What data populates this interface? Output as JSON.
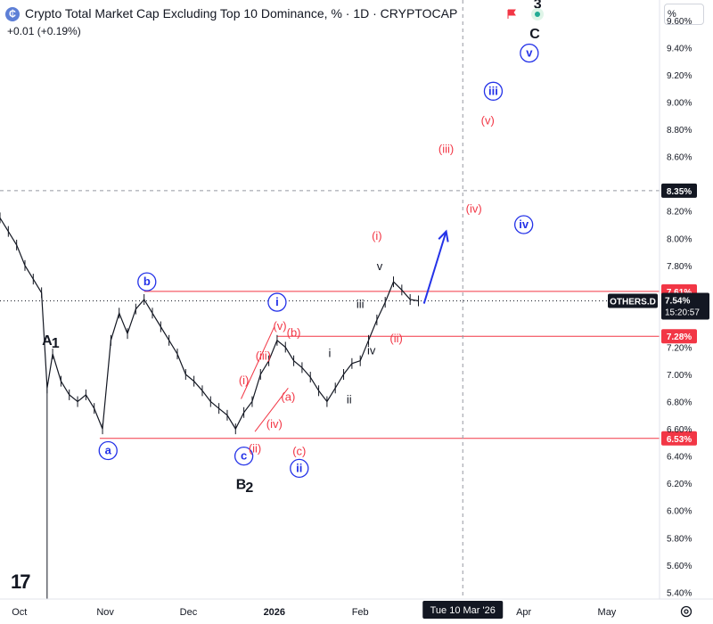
{
  "header": {
    "logo_glyph": "₵",
    "title": "Crypto Total Market Cap Excluding Top 10 Dominance, % · 1D · CRYPTOCAP",
    "change": "+0.01 (+0.19%)",
    "scale_button": "%",
    "flag_icon": "flag-icon",
    "status_icon": "market-status-icon"
  },
  "chart_data": {
    "type": "line",
    "symbol_label": "OTHERS.D",
    "last_price_label": "7.54%",
    "countdown": "15:20:57",
    "crosshair_price": "8.35%",
    "crosshair_date": "Tue 10 Mar '26",
    "y_ticks": [
      "9.60%",
      "9.40%",
      "9.20%",
      "9.00%",
      "8.80%",
      "8.60%",
      "8.20%",
      "8.00%",
      "7.80%",
      "7.20%",
      "7.00%",
      "6.80%",
      "6.60%",
      "6.40%",
      "6.20%",
      "6.00%",
      "5.80%",
      "5.60%",
      "5.40%"
    ],
    "y_tick_values": [
      9.6,
      9.4,
      9.2,
      9.0,
      8.8,
      8.6,
      8.2,
      8.0,
      7.8,
      7.2,
      7.0,
      6.8,
      6.6,
      6.4,
      6.2,
      6.0,
      5.8,
      5.6,
      5.4
    ],
    "ylim": [
      5.35,
      9.75
    ],
    "x_ticks": [
      "Oct",
      "Nov",
      "Dec",
      "2026",
      "Feb",
      "Apr",
      "May"
    ],
    "x_tick_dates": [
      "2025-10-01",
      "2025-11-01",
      "2025-12-01",
      "2026-01-01",
      "2026-02-01",
      "2026-04-01",
      "2026-05-01"
    ],
    "xlim": [
      "2025-09-24",
      "2026-05-20"
    ],
    "horizontal_levels": [
      {
        "value": 7.61,
        "label": "7.61%",
        "color": "#f23645",
        "from": "2025-11-15"
      },
      {
        "value": 7.28,
        "label": "7.28%",
        "color": "#f23645",
        "from": "2026-01-02"
      },
      {
        "value": 6.53,
        "label": "6.53%",
        "color": "#f23645",
        "from": "2025-10-30"
      }
    ],
    "series": [
      {
        "color": "#131722",
        "x": [
          "2025-09-24",
          "2025-09-27",
          "2025-09-30",
          "2025-10-03",
          "2025-10-06",
          "2025-10-09",
          "2025-10-11",
          "2025-10-13",
          "2025-10-16",
          "2025-10-19",
          "2025-10-22",
          "2025-10-25",
          "2025-10-28",
          "2025-10-31",
          "2025-11-03",
          "2025-11-06",
          "2025-11-09",
          "2025-11-12",
          "2025-11-15",
          "2025-11-18",
          "2025-11-21",
          "2025-11-24",
          "2025-11-27",
          "2025-11-30",
          "2025-12-03",
          "2025-12-06",
          "2025-12-09",
          "2025-12-12",
          "2025-12-15",
          "2025-12-18",
          "2025-12-21",
          "2025-12-24",
          "2025-12-27",
          "2025-12-30",
          "2026-01-02",
          "2026-01-05",
          "2026-01-08",
          "2026-01-11",
          "2026-01-14",
          "2026-01-17",
          "2026-01-20",
          "2026-01-23",
          "2026-01-26",
          "2026-01-29",
          "2026-02-01",
          "2026-02-04",
          "2026-02-07",
          "2026-02-10",
          "2026-02-13",
          "2026-02-16",
          "2026-02-19",
          "2026-02-22"
        ],
        "values": [
          8.15,
          8.05,
          7.95,
          7.8,
          7.7,
          7.6,
          6.9,
          7.15,
          6.95,
          6.85,
          6.8,
          6.85,
          6.75,
          6.6,
          7.25,
          7.45,
          7.3,
          7.48,
          7.55,
          7.45,
          7.35,
          7.25,
          7.15,
          7.0,
          6.95,
          6.88,
          6.8,
          6.75,
          6.7,
          6.6,
          6.72,
          6.8,
          7.0,
          7.1,
          7.25,
          7.2,
          7.1,
          7.05,
          6.98,
          6.88,
          6.8,
          6.9,
          7.0,
          7.08,
          7.1,
          7.25,
          7.4,
          7.53,
          7.68,
          7.62,
          7.55,
          7.54
        ]
      }
    ],
    "projection": {
      "from_x": "2026-02-24",
      "from_y": 7.52,
      "to_x": "2026-03-04",
      "to_y": 8.05,
      "color": "#2432e8"
    },
    "trendlines": [
      {
        "x": [
          "2025-12-20",
          "2026-01-01"
        ],
        "y": [
          6.82,
          7.35
        ],
        "color": "#f23645"
      },
      {
        "x": [
          "2025-12-25",
          "2026-01-06"
        ],
        "y": [
          6.58,
          6.9
        ],
        "color": "#f23645"
      }
    ],
    "vertical_lines": [
      {
        "x": "2025-10-11",
        "from_y": 6.9,
        "to_y": 5.35,
        "color": "#131722"
      }
    ],
    "annotations": [
      {
        "text": "A",
        "x": "2025-10-11",
        "y": 7.25,
        "color": "#131722",
        "size": 16
      },
      {
        "text": "1",
        "x": "2025-10-14",
        "y": 7.23,
        "color": "#131722",
        "size": 16
      },
      {
        "text": "b",
        "x": "2025-11-16",
        "y": 7.68,
        "color": "#2432e8",
        "circle": true
      },
      {
        "text": "a",
        "x": "2025-11-02",
        "y": 6.44,
        "color": "#2432e8",
        "circle": true
      },
      {
        "text": "c",
        "x": "2025-12-21",
        "y": 6.4,
        "color": "#2432e8",
        "circle": true
      },
      {
        "text": "B",
        "x": "2025-12-20",
        "y": 6.19,
        "color": "#131722",
        "size": 16
      },
      {
        "text": "2",
        "x": "2025-12-23",
        "y": 6.17,
        "color": "#131722",
        "size": 16
      },
      {
        "text": "i",
        "x": "2026-01-02",
        "y": 7.53,
        "color": "#2432e8",
        "circle": true
      },
      {
        "text": "(i)",
        "x": "2025-12-21",
        "y": 6.96,
        "color": "#f23645"
      },
      {
        "text": "(ii)",
        "x": "2025-12-25",
        "y": 6.46,
        "color": "#f23645"
      },
      {
        "text": "(iii)",
        "x": "2025-12-28",
        "y": 7.14,
        "color": "#f23645"
      },
      {
        "text": "(iv)",
        "x": "2026-01-01",
        "y": 6.64,
        "color": "#f23645"
      },
      {
        "text": "(v)",
        "x": "2026-01-03",
        "y": 7.36,
        "color": "#f23645"
      },
      {
        "text": "(a)",
        "x": "2026-01-06",
        "y": 6.84,
        "color": "#f23645"
      },
      {
        "text": "(b)",
        "x": "2026-01-08",
        "y": 7.31,
        "color": "#f23645"
      },
      {
        "text": "(c)",
        "x": "2026-01-10",
        "y": 6.44,
        "color": "#f23645"
      },
      {
        "text": "ii",
        "x": "2026-01-10",
        "y": 6.31,
        "color": "#2432e8",
        "circle": true
      },
      {
        "text": "i",
        "x": "2026-01-21",
        "y": 7.16,
        "color": "#131722"
      },
      {
        "text": "ii",
        "x": "2026-01-28",
        "y": 6.82,
        "color": "#131722"
      },
      {
        "text": "iii",
        "x": "2026-02-01",
        "y": 7.52,
        "color": "#131722"
      },
      {
        "text": "iv",
        "x": "2026-02-05",
        "y": 7.18,
        "color": "#131722"
      },
      {
        "text": "v",
        "x": "2026-02-08",
        "y": 7.8,
        "color": "#131722"
      },
      {
        "text": "(i)",
        "x": "2026-02-07",
        "y": 8.02,
        "color": "#f23645"
      },
      {
        "text": "(ii)",
        "x": "2026-02-14",
        "y": 7.27,
        "color": "#f23645"
      },
      {
        "text": "(iii)",
        "x": "2026-03-04",
        "y": 8.66,
        "color": "#f23645"
      },
      {
        "text": "(iv)",
        "x": "2026-03-14",
        "y": 8.22,
        "color": "#f23645"
      },
      {
        "text": "(v)",
        "x": "2026-03-19",
        "y": 8.87,
        "color": "#f23645"
      },
      {
        "text": "iii",
        "x": "2026-03-21",
        "y": 9.08,
        "color": "#2432e8",
        "circle": true
      },
      {
        "text": "iv",
        "x": "2026-04-01",
        "y": 8.1,
        "color": "#2432e8",
        "circle": true
      },
      {
        "text": "v",
        "x": "2026-04-03",
        "y": 9.36,
        "color": "#2432e8",
        "circle": true
      },
      {
        "text": "C",
        "x": "2026-04-05",
        "y": 9.5,
        "color": "#131722",
        "size": 16
      },
      {
        "text": "3",
        "x": "2026-04-06",
        "y": 9.72,
        "color": "#131722",
        "size": 16
      }
    ]
  }
}
